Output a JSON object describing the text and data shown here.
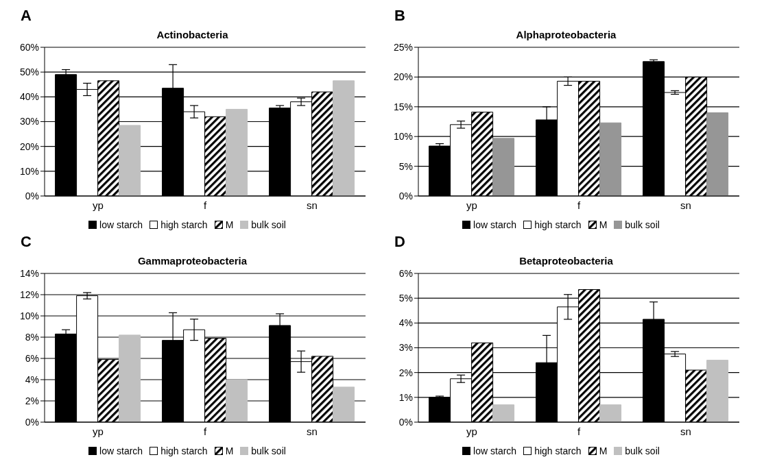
{
  "chart_data": [
    {
      "type": "bar",
      "title": "Actinobacteria",
      "annotations": [
        "A"
      ],
      "categories": [
        "yp",
        "f",
        "sn"
      ],
      "ylim": [
        0,
        60
      ],
      "yticks": [
        {
          "value": 0,
          "label": "0%"
        },
        {
          "value": 10,
          "label": "10%"
        },
        {
          "value": 20,
          "label": "20%"
        },
        {
          "value": 30,
          "label": "30%"
        },
        {
          "value": 40,
          "label": "40%"
        },
        {
          "value": 50,
          "label": "50%"
        },
        {
          "value": 60,
          "label": "60%"
        }
      ],
      "grid": "y",
      "legend": "bottom",
      "series": [
        {
          "name": "low starch",
          "color": "#000000",
          "values": [
            49,
            43.5,
            35.5
          ],
          "errors": [
            2,
            9.5,
            1
          ]
        },
        {
          "name": "high starch",
          "color": "#ffffff",
          "values": [
            43,
            34,
            38
          ],
          "errors": [
            2.5,
            2.5,
            1.5
          ]
        },
        {
          "name": "M",
          "color": "#000000",
          "values": [
            46.5,
            32,
            42
          ]
        },
        {
          "name": "bulk soil",
          "color": "#c0c0c0",
          "values": [
            28.5,
            35,
            46.5
          ]
        }
      ]
    },
    {
      "type": "bar",
      "title": "Alphaproteobacteria",
      "annotations": [
        "B"
      ],
      "categories": [
        "yp",
        "f",
        "sn"
      ],
      "ylim": [
        0,
        25
      ],
      "yticks": [
        {
          "value": 0,
          "label": "0%"
        },
        {
          "value": 5,
          "label": "5%"
        },
        {
          "value": 10,
          "label": "10%"
        },
        {
          "value": 15,
          "label": "15%"
        },
        {
          "value": 20,
          "label": "20%"
        },
        {
          "value": 25,
          "label": "25%"
        }
      ],
      "grid": "y",
      "legend": "bottom",
      "series": [
        {
          "name": "low starch",
          "color": "#000000",
          "values": [
            8.4,
            12.8,
            22.6
          ],
          "errors": [
            0.4,
            2.2,
            0.3
          ]
        },
        {
          "name": "high starch",
          "color": "#ffffff",
          "values": [
            12,
            19.3,
            17.4
          ],
          "errors": [
            0.6,
            0.7,
            0.3
          ]
        },
        {
          "name": "M",
          "color": "#000000",
          "values": [
            14.1,
            19.3,
            20
          ]
        },
        {
          "name": "bulk soil",
          "color": "#969696",
          "values": [
            9.7,
            12.3,
            14
          ]
        }
      ]
    },
    {
      "type": "bar",
      "title": "Gammaproteobacteria",
      "annotations": [
        "C"
      ],
      "categories": [
        "yp",
        "f",
        "sn"
      ],
      "ylim": [
        0,
        14
      ],
      "yticks": [
        {
          "value": 0,
          "label": "0%"
        },
        {
          "value": 2,
          "label": "2%"
        },
        {
          "value": 4,
          "label": "4%"
        },
        {
          "value": 6,
          "label": "6%"
        },
        {
          "value": 8,
          "label": "8%"
        },
        {
          "value": 10,
          "label": "10%"
        },
        {
          "value": 12,
          "label": "12%"
        },
        {
          "value": 14,
          "label": "14%"
        }
      ],
      "grid": "y",
      "legend": "bottom",
      "series": [
        {
          "name": "low starch",
          "color": "#000000",
          "values": [
            8.3,
            7.7,
            9.1
          ],
          "errors": [
            0.4,
            2.6,
            1.1
          ]
        },
        {
          "name": "high starch",
          "color": "#ffffff",
          "values": [
            11.9,
            8.7,
            5.7
          ],
          "errors": [
            0.3,
            1,
            1
          ]
        },
        {
          "name": "M",
          "color": "#000000",
          "values": [
            5.9,
            7.9,
            6.2
          ]
        },
        {
          "name": "bulk soil",
          "color": "#c0c0c0",
          "values": [
            8.2,
            4,
            3.3
          ]
        }
      ]
    },
    {
      "type": "bar",
      "title": "Betaproteobacteria",
      "annotations": [
        "D"
      ],
      "categories": [
        "yp",
        "f",
        "sn"
      ],
      "ylim": [
        0,
        6
      ],
      "yticks": [
        {
          "value": 0,
          "label": "0%"
        },
        {
          "value": 1,
          "label": "1%"
        },
        {
          "value": 2,
          "label": "2%"
        },
        {
          "value": 3,
          "label": "3%"
        },
        {
          "value": 4,
          "label": "4%"
        },
        {
          "value": 5,
          "label": "5%"
        },
        {
          "value": 6,
          "label": "6%"
        }
      ],
      "grid": "y",
      "legend": "bottom",
      "series": [
        {
          "name": "low starch",
          "color": "#000000",
          "values": [
            1,
            2.4,
            4.15
          ],
          "errors": [
            0.05,
            1.1,
            0.7
          ]
        },
        {
          "name": "high starch",
          "color": "#ffffff",
          "values": [
            1.75,
            4.65,
            2.75
          ],
          "errors": [
            0.15,
            0.5,
            0.1
          ]
        },
        {
          "name": "M",
          "color": "#000000",
          "values": [
            3.2,
            5.35,
            2.1
          ]
        },
        {
          "name": "bulk soil",
          "color": "#c0c0c0",
          "values": [
            0.7,
            0.7,
            2.5
          ]
        }
      ]
    }
  ]
}
